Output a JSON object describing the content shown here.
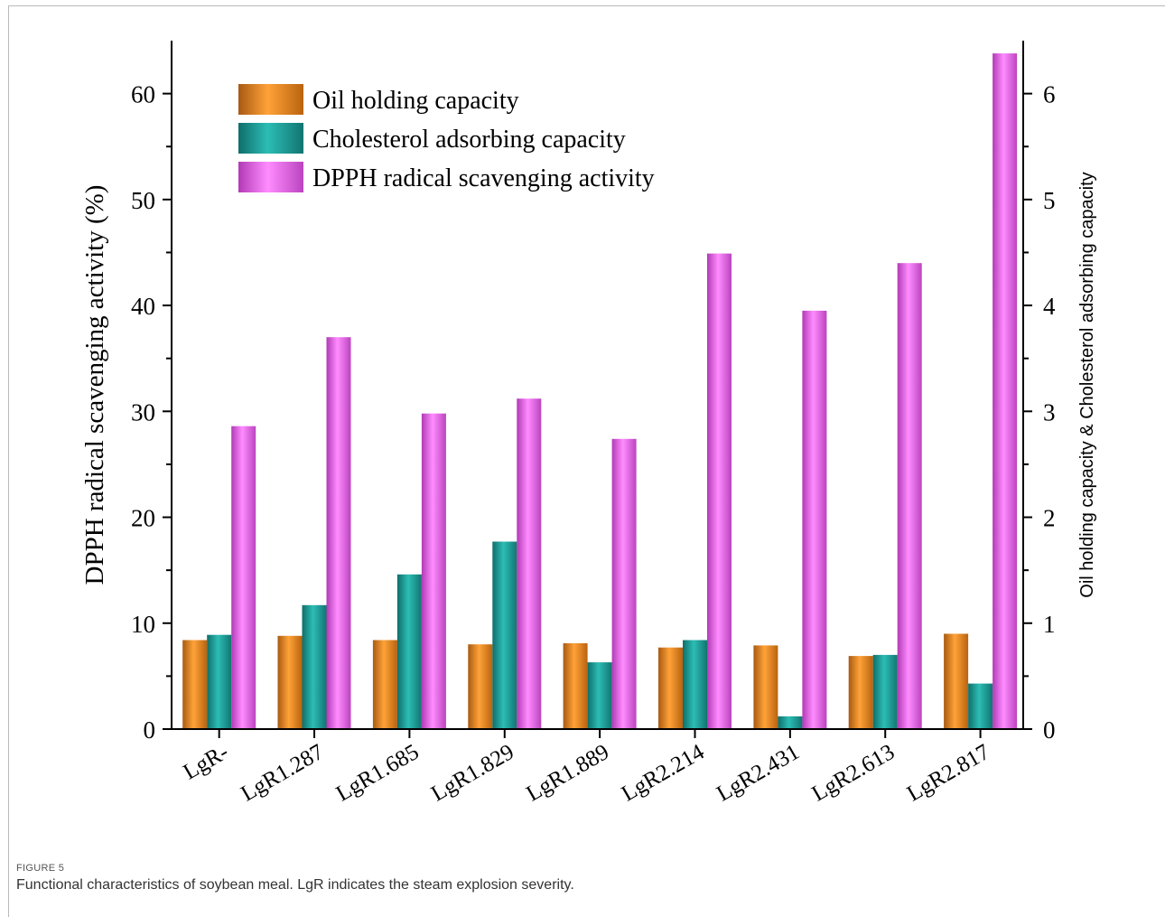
{
  "caption": {
    "label": "FIGURE 5",
    "text": "Functional characteristics of soybean meal. LgR indicates the steam explosion severity."
  },
  "chart_data": {
    "type": "bar",
    "categories": [
      "LgR-",
      "LgR1.287",
      "LgR1.685",
      "LgR1.829",
      "LgR1.889",
      "LgR2.214",
      "LgR2.431",
      "LgR2.613",
      "LgR2.817"
    ],
    "ylabel": "DPPH radical scavenging activity (%)",
    "y2label": "Oil holding capacity & Cholesterol adsorbing capacity",
    "ylim": [
      0,
      65
    ],
    "y2lim": [
      0,
      6.5
    ],
    "yticks": [
      0,
      10,
      20,
      30,
      40,
      50,
      60
    ],
    "y2ticks": [
      0,
      1,
      2,
      3,
      4,
      5,
      6
    ],
    "legend_position": "top-left",
    "series": [
      {
        "name": "Oil holding capacity",
        "axis": "right",
        "color": "#f08a1c",
        "values": [
          0.84,
          0.88,
          0.84,
          0.8,
          0.81,
          0.77,
          0.79,
          0.69,
          0.9
        ]
      },
      {
        "name": "Cholesterol adsorbing capacity",
        "axis": "right",
        "color": "#1e9e98",
        "values": [
          0.89,
          1.17,
          1.46,
          1.77,
          0.63,
          0.84,
          0.12,
          0.7,
          0.43
        ]
      },
      {
        "name": "DPPH radical scavenging activity",
        "axis": "left",
        "color": "#e66ae8",
        "values": [
          28.6,
          37.0,
          29.8,
          31.2,
          27.4,
          44.9,
          39.5,
          44.0,
          63.8
        ]
      }
    ]
  }
}
